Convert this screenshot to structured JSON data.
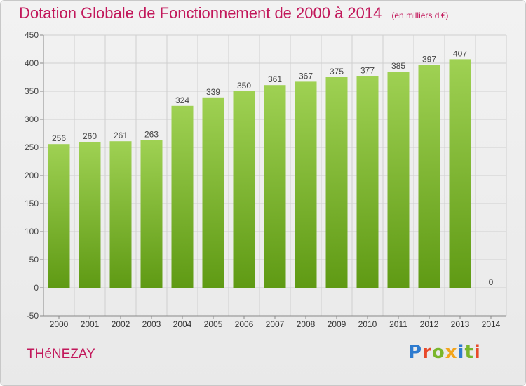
{
  "header": {
    "title": "Dotation Globale de Fonctionnement de 2000 à 2014",
    "unit": "(en milliers d'€)"
  },
  "footer": {
    "commune": "THéNEZAY",
    "brand": "Proxiti"
  },
  "colors": {
    "title": "#c2185b",
    "bar_top": "#9fd153",
    "bar_bottom": "#5f9a14",
    "grid": "#cfcfcf",
    "logo_letters": [
      "#2e7bcf",
      "#e8492a",
      "#7ab62b",
      "#f3a51c",
      "#2e7bcf",
      "#7ab62b",
      "#e8492a"
    ]
  },
  "chart_data": {
    "type": "bar",
    "categories": [
      "2000",
      "2001",
      "2002",
      "2003",
      "2004",
      "2005",
      "2006",
      "2007",
      "2008",
      "2009",
      "2010",
      "2011",
      "2012",
      "2013",
      "2014"
    ],
    "values": [
      256,
      260,
      261,
      263,
      324,
      339,
      350,
      361,
      367,
      375,
      377,
      385,
      397,
      407,
      0
    ],
    "ylim": [
      -50,
      450
    ],
    "yticks": [
      -50,
      0,
      50,
      100,
      150,
      200,
      250,
      300,
      350,
      400,
      450
    ],
    "grid": true,
    "title": "Dotation Globale de Fonctionnement de 2000 à 2014",
    "xlabel": "",
    "ylabel": ""
  }
}
